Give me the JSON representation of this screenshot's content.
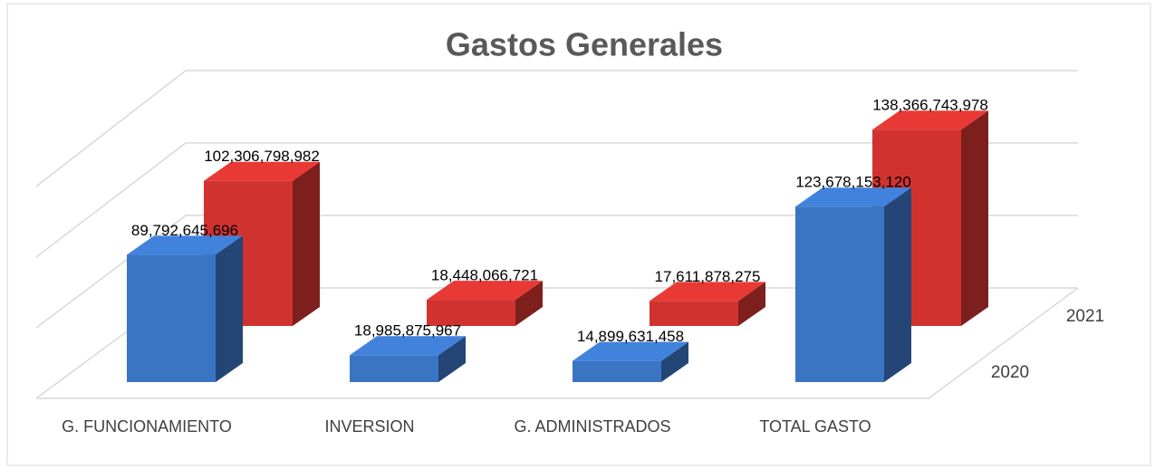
{
  "chart_data": {
    "type": "bar3d",
    "title": "Gastos Generales",
    "categories": [
      "G. FUNCIONAMIENTO",
      "INVERSION",
      "G. ADMINISTRADOS",
      "TOTAL GASTO"
    ],
    "series": [
      {
        "name": "2020",
        "color": "#3a75c4",
        "values": [
          89792645696,
          18985875967,
          14899631458,
          123678153120
        ],
        "value_labels": [
          "89,792,645,696",
          "18,985,875,967",
          "14,899,631,458",
          "123,678,153,120"
        ]
      },
      {
        "name": "2021",
        "color": "#d0332f",
        "values": [
          102306798982,
          18448066721,
          17611878275,
          138366743978
        ],
        "value_labels": [
          "102,306,798,982",
          "18,448,066,721",
          "17,611,878,275",
          "138,366,743,978"
        ]
      }
    ],
    "ylim": [
      0,
      150000000000
    ],
    "yticks": [
      0,
      50000000000,
      100000000000,
      150000000000
    ],
    "grid": true
  }
}
